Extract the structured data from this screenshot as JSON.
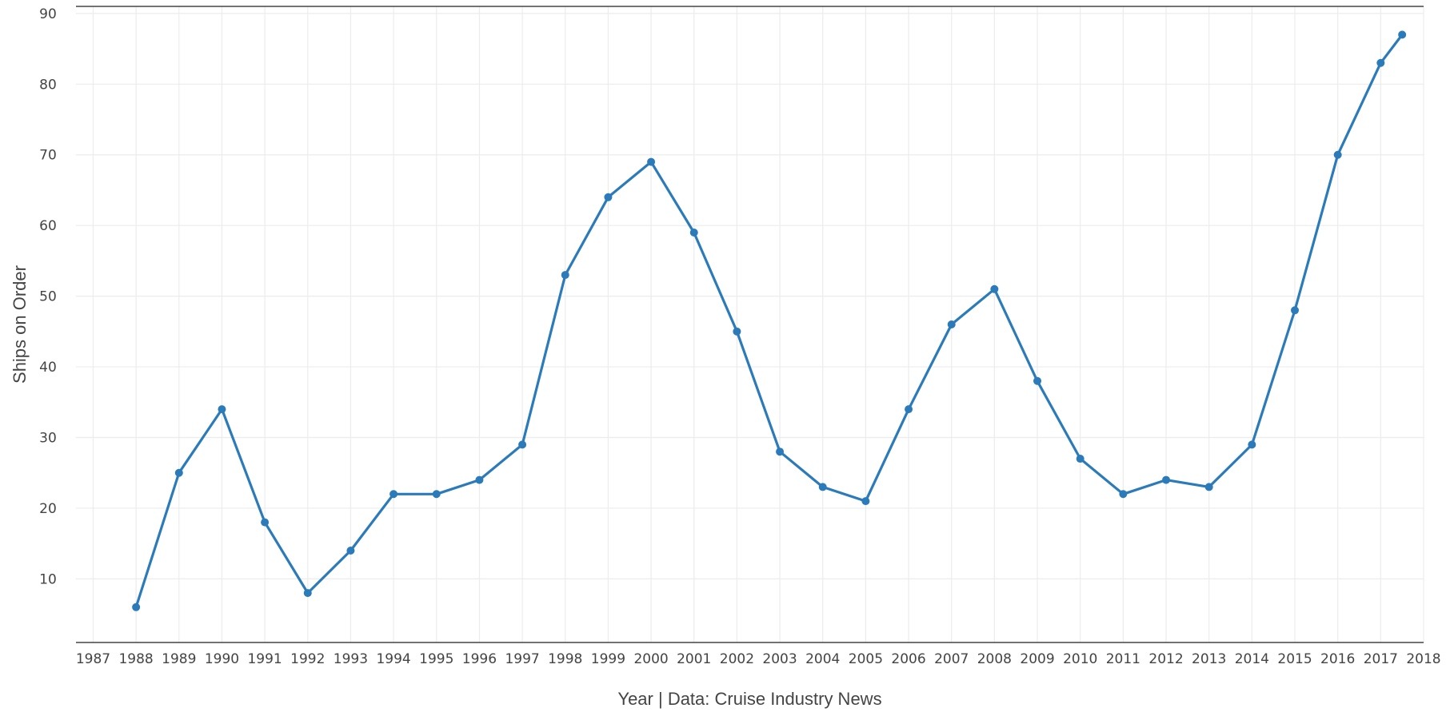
{
  "chart_data": {
    "type": "line",
    "title": "",
    "xlabel": "Year | Data: Cruise Industry News",
    "ylabel": "Ships on Order",
    "x_ticks": [
      "1987",
      "1988",
      "1989",
      "1990",
      "1991",
      "1992",
      "1993",
      "1994",
      "1995",
      "1996",
      "1997",
      "1998",
      "1999",
      "2000",
      "2001",
      "2002",
      "2003",
      "2004",
      "2005",
      "2006",
      "2007",
      "2008",
      "2009",
      "2010",
      "2011",
      "2012",
      "2013",
      "2014",
      "2015",
      "2016",
      "2017",
      "2018"
    ],
    "y_ticks": [
      10,
      20,
      30,
      40,
      50,
      60,
      70,
      80,
      90
    ],
    "xlim": [
      1986.6,
      2018.0
    ],
    "ylim": [
      1,
      91
    ],
    "grid": true,
    "legend": "none",
    "series": [
      {
        "color": "#2b7bba",
        "x": [
          1988,
          1989,
          1990,
          1991,
          1992,
          1993,
          1994,
          1995,
          1996,
          1997,
          1998,
          1999,
          2000,
          2001,
          2002,
          2003,
          2004,
          2005,
          2006,
          2007,
          2008,
          2009,
          2010,
          2011,
          2012,
          2013,
          2014,
          2015,
          2016,
          2017,
          2017.5
        ],
        "values": [
          6,
          25,
          34,
          18,
          8,
          14,
          22,
          22,
          24,
          29,
          53,
          64,
          69,
          59,
          45,
          28,
          23,
          21,
          34,
          46,
          51,
          38,
          27,
          22,
          24,
          23,
          29,
          48,
          70,
          83,
          87
        ]
      }
    ]
  }
}
